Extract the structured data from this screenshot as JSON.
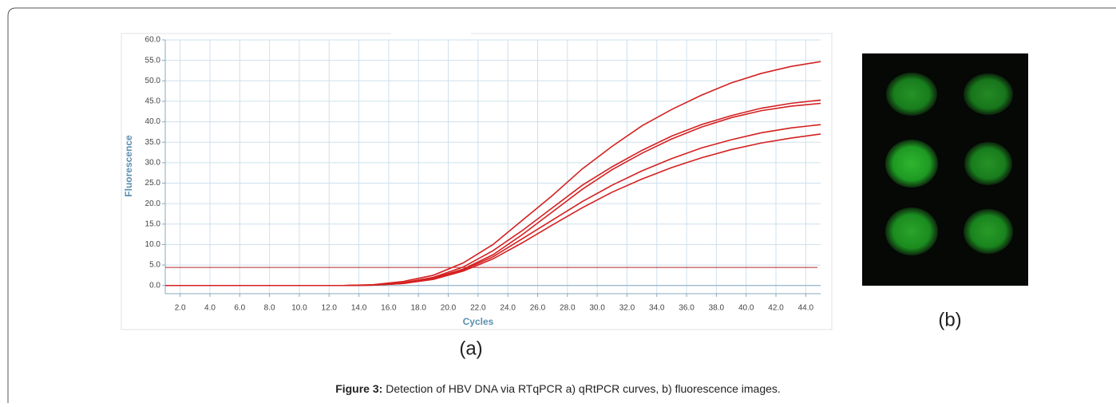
{
  "chart_data": {
    "type": "line",
    "xlabel": "Cycles",
    "ylabel": "Fluorescence",
    "xlim": [
      1,
      45
    ],
    "ylim": [
      -2,
      60
    ],
    "xticks": [
      {
        "value": 2,
        "label": "2.0"
      },
      {
        "value": 4,
        "label": "4.0"
      },
      {
        "value": 6,
        "label": "6.0"
      },
      {
        "value": 8,
        "label": "8.0"
      },
      {
        "value": 10,
        "label": "10.0"
      },
      {
        "value": 12,
        "label": "12.0"
      },
      {
        "value": 14,
        "label": "14.0"
      },
      {
        "value": 16,
        "label": "16.0"
      },
      {
        "value": 18,
        "label": "18.0"
      },
      {
        "value": 20,
        "label": "20.0"
      },
      {
        "value": 22,
        "label": "22.0"
      },
      {
        "value": 24,
        "label": "24.0"
      },
      {
        "value": 26,
        "label": "26.0"
      },
      {
        "value": 28,
        "label": "28.0"
      },
      {
        "value": 30,
        "label": "30.0"
      },
      {
        "value": 32,
        "label": "32.0"
      },
      {
        "value": 34,
        "label": "34.0"
      },
      {
        "value": 36,
        "label": "36.0"
      },
      {
        "value": 38,
        "label": "38.0"
      },
      {
        "value": 40,
        "label": "40.0"
      },
      {
        "value": 42,
        "label": "42.0"
      },
      {
        "value": 44,
        "label": "44.0"
      }
    ],
    "yticks": [
      {
        "value": 0,
        "label": "0.0"
      },
      {
        "value": 5,
        "label": "5.0"
      },
      {
        "value": 10,
        "label": "10.0"
      },
      {
        "value": 15,
        "label": "15.0"
      },
      {
        "value": 20,
        "label": "20.0"
      },
      {
        "value": 25,
        "label": "25.0"
      },
      {
        "value": 30,
        "label": "30.0"
      },
      {
        "value": 35,
        "label": "35.0"
      },
      {
        "value": 40,
        "label": "40.0"
      },
      {
        "value": 45,
        "label": "45.0"
      },
      {
        "value": 50,
        "label": "50.0"
      },
      {
        "value": 55,
        "label": "55.0"
      },
      {
        "value": 60,
        "label": "60.0"
      }
    ],
    "grid": true,
    "threshold": 4.4,
    "x": [
      1,
      3,
      5,
      7,
      9,
      11,
      13,
      15,
      17,
      19,
      21,
      23,
      25,
      27,
      29,
      31,
      33,
      35,
      37,
      39,
      41,
      43,
      45
    ],
    "series": [
      {
        "color": "#d42020",
        "values": [
          0,
          0,
          0,
          0,
          0,
          0,
          0,
          0.2,
          1,
          2.5,
          5.5,
          10,
          16,
          22,
          28.5,
          34,
          39,
          43,
          46.5,
          49.5,
          51.8,
          53.5,
          54.7
        ]
      },
      {
        "color": "#d42020",
        "values": [
          0,
          0,
          0,
          0,
          0,
          0,
          0,
          0.1,
          0.7,
          2,
          4.5,
          8.5,
          13.5,
          19,
          24.5,
          29,
          33,
          36.5,
          39.3,
          41.5,
          43.3,
          44.5,
          45.3
        ]
      },
      {
        "color": "#d42020",
        "values": [
          0,
          0,
          0,
          0,
          0,
          0,
          0,
          0.1,
          0.6,
          1.8,
          4,
          7.5,
          12.5,
          18,
          23.5,
          28.3,
          32.3,
          35.8,
          38.7,
          41,
          42.7,
          43.8,
          44.5
        ]
      },
      {
        "color": "#d42020",
        "values": [
          0,
          0,
          0,
          0,
          0,
          0,
          0,
          0.1,
          0.5,
          1.6,
          3.8,
          7,
          11.5,
          16,
          20.5,
          24.5,
          28,
          31,
          33.6,
          35.6,
          37.3,
          38.5,
          39.3
        ]
      },
      {
        "color": "#d42020",
        "values": [
          0,
          0,
          0,
          0,
          0,
          0,
          0,
          0.1,
          0.5,
          1.5,
          3.5,
          6.5,
          10.5,
          14.8,
          19,
          22.8,
          26,
          28.8,
          31.2,
          33.2,
          34.8,
          36,
          37
        ]
      }
    ]
  },
  "figure": {
    "panel_a": "(a)",
    "panel_b": "(b)",
    "caption_label": "Figure 3:",
    "caption_text": " Detection of HBV DNA via RTqPCR a) qRtPCR curves, b) fluorescence images."
  }
}
